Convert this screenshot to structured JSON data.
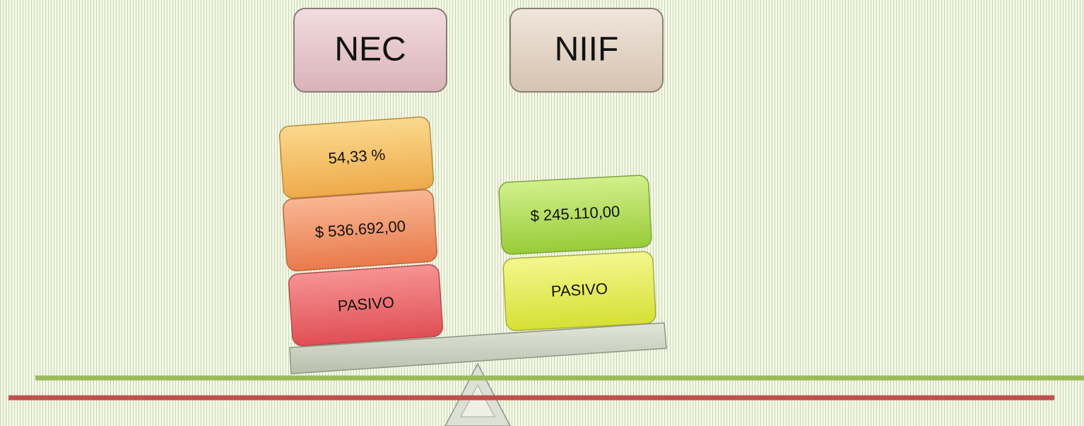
{
  "headers": [
    "NEC",
    "NIIF"
  ],
  "left_stack": [
    "54,33 %",
    "$ 536.692,00",
    "PASIVO"
  ],
  "right_stack": [
    "$ 245.110,00",
    "PASIVO"
  ]
}
